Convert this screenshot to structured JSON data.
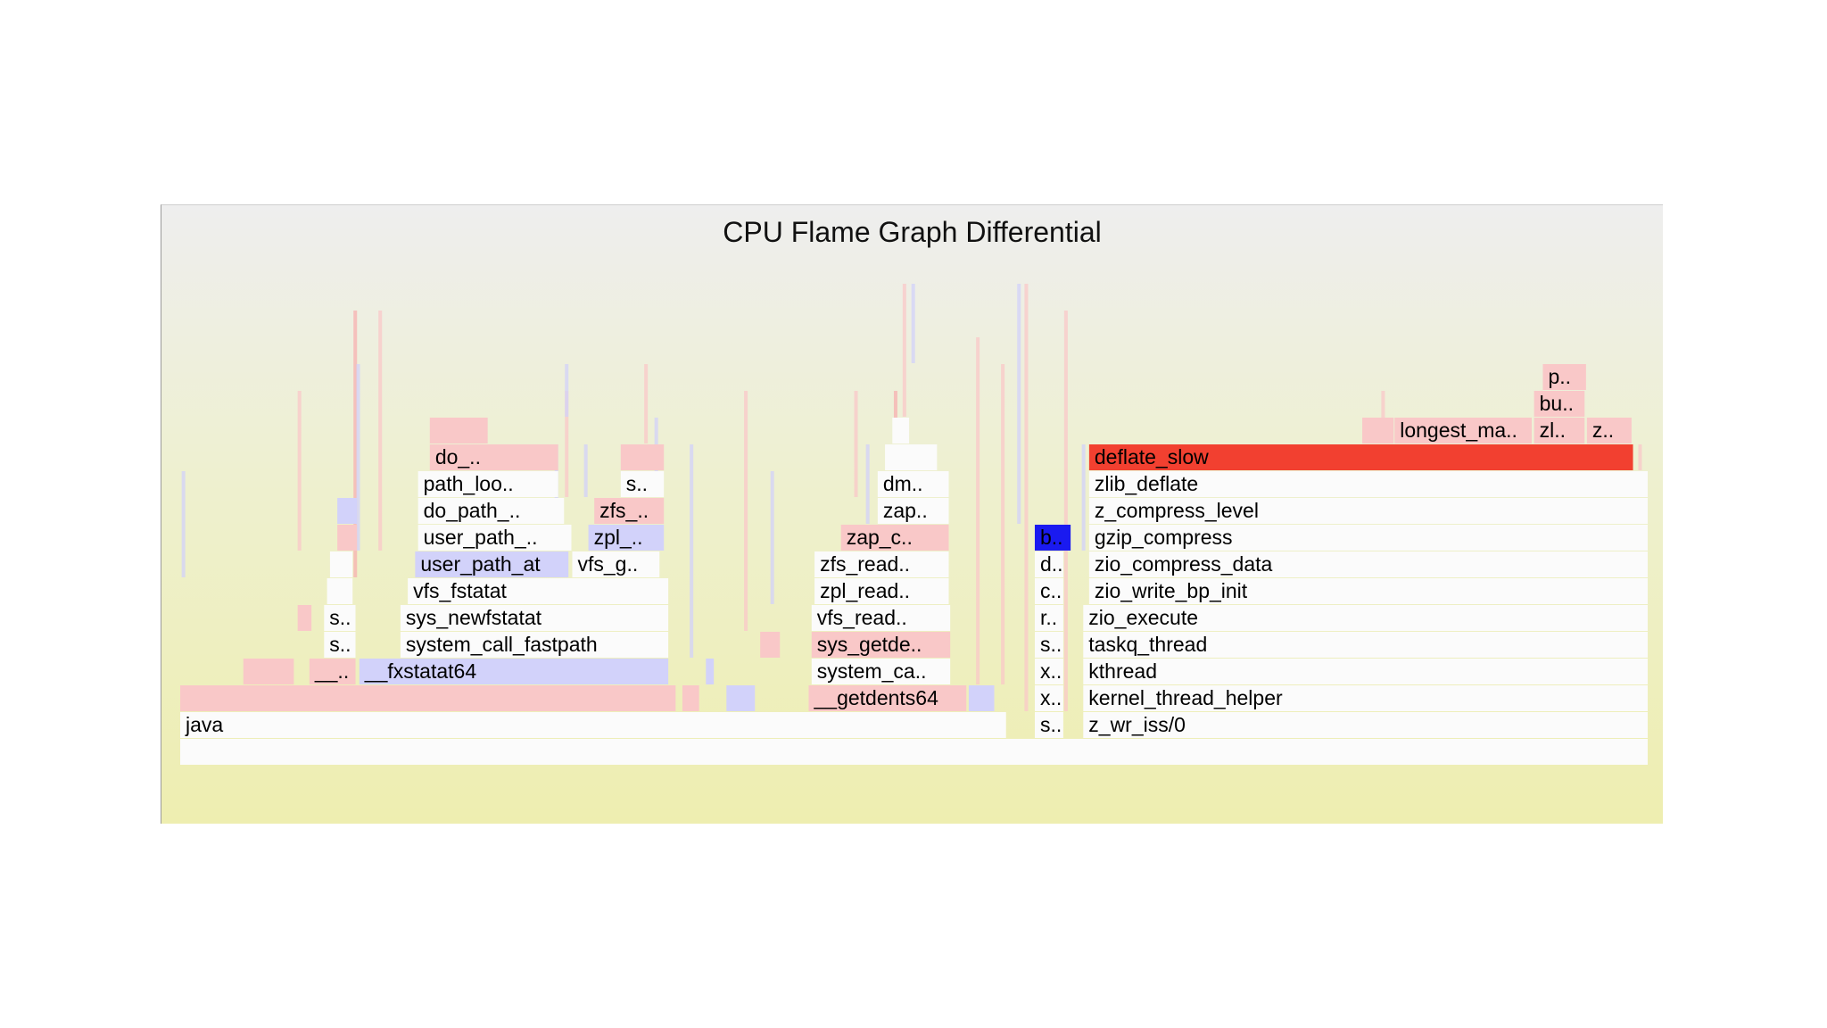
{
  "chart_data": {
    "type": "flame-graph-differential",
    "title": "CPU Flame Graph Differential",
    "colors": {
      "empty": "#fbfbfb",
      "pink": "#f9c8c8",
      "pink_mid": "#f7b0b0",
      "lavender": "#d2d2fa",
      "hot_red": "#f24030",
      "deep_blue": "#1a1af0"
    },
    "frames": [
      {
        "label": "",
        "start": 0.0,
        "width": 1.0,
        "depth": 0,
        "color": "empty"
      },
      {
        "label": "java",
        "start": 0.0,
        "width": 0.563,
        "depth": 1,
        "color": "empty"
      },
      {
        "label": "s..",
        "start": 0.582,
        "width": 0.02,
        "depth": 1,
        "color": "empty"
      },
      {
        "label": "z_wr_iss/0",
        "start": 0.615,
        "width": 0.385,
        "depth": 1,
        "color": "empty"
      },
      {
        "label": "",
        "start": 0.0,
        "width": 0.338,
        "depth": 2,
        "color": "pink"
      },
      {
        "label": "",
        "start": 0.342,
        "width": 0.012,
        "depth": 2,
        "color": "pink"
      },
      {
        "label": "",
        "start": 0.372,
        "width": 0.02,
        "depth": 2,
        "color": "lavender"
      },
      {
        "label": "__getdents64",
        "start": 0.428,
        "width": 0.108,
        "depth": 2,
        "color": "pink"
      },
      {
        "label": "",
        "start": 0.537,
        "width": 0.018,
        "depth": 2,
        "color": "lavender"
      },
      {
        "label": "x..",
        "start": 0.582,
        "width": 0.02,
        "depth": 2,
        "color": "empty"
      },
      {
        "label": "kernel_thread_helper",
        "start": 0.615,
        "width": 0.385,
        "depth": 2,
        "color": "empty"
      },
      {
        "label": "",
        "start": 0.043,
        "width": 0.035,
        "depth": 3,
        "color": "pink"
      },
      {
        "label": "__..",
        "start": 0.088,
        "width": 0.032,
        "depth": 3,
        "color": "pink"
      },
      {
        "label": "__fxstatat64",
        "start": 0.122,
        "width": 0.211,
        "depth": 3,
        "color": "lavender"
      },
      {
        "label": "",
        "start": 0.358,
        "width": 0.006,
        "depth": 3,
        "color": "lavender"
      },
      {
        "label": "system_ca..",
        "start": 0.43,
        "width": 0.095,
        "depth": 3,
        "color": "empty"
      },
      {
        "label": "x..",
        "start": 0.582,
        "width": 0.02,
        "depth": 3,
        "color": "empty"
      },
      {
        "label": "kthread",
        "start": 0.615,
        "width": 0.385,
        "depth": 3,
        "color": "empty"
      },
      {
        "label": "s..",
        "start": 0.098,
        "width": 0.022,
        "depth": 4,
        "color": "empty"
      },
      {
        "label": "system_call_fastpath",
        "start": 0.15,
        "width": 0.183,
        "depth": 4,
        "color": "empty"
      },
      {
        "label": "",
        "start": 0.395,
        "width": 0.014,
        "depth": 4,
        "color": "pink"
      },
      {
        "label": "sys_getde..",
        "start": 0.43,
        "width": 0.095,
        "depth": 4,
        "color": "pink"
      },
      {
        "label": "s..",
        "start": 0.582,
        "width": 0.02,
        "depth": 4,
        "color": "empty"
      },
      {
        "label": "taskq_thread",
        "start": 0.615,
        "width": 0.385,
        "depth": 4,
        "color": "empty"
      },
      {
        "label": "",
        "start": 0.08,
        "width": 0.01,
        "depth": 5,
        "color": "pink"
      },
      {
        "label": "s..",
        "start": 0.098,
        "width": 0.022,
        "depth": 5,
        "color": "empty"
      },
      {
        "label": "sys_newfstatat",
        "start": 0.15,
        "width": 0.183,
        "depth": 5,
        "color": "empty"
      },
      {
        "label": "vfs_read..",
        "start": 0.43,
        "width": 0.095,
        "depth": 5,
        "color": "empty"
      },
      {
        "label": "r..",
        "start": 0.582,
        "width": 0.02,
        "depth": 5,
        "color": "empty"
      },
      {
        "label": "zio_execute",
        "start": 0.615,
        "width": 0.385,
        "depth": 5,
        "color": "empty"
      },
      {
        "label": "",
        "start": 0.1,
        "width": 0.018,
        "depth": 6,
        "color": "empty"
      },
      {
        "label": "vfs_fstatat",
        "start": 0.155,
        "width": 0.178,
        "depth": 6,
        "color": "empty"
      },
      {
        "label": "zpl_read..",
        "start": 0.432,
        "width": 0.092,
        "depth": 6,
        "color": "empty"
      },
      {
        "label": "c..",
        "start": 0.582,
        "width": 0.02,
        "depth": 6,
        "color": "empty"
      },
      {
        "label": "zio_write_bp_init",
        "start": 0.619,
        "width": 0.381,
        "depth": 6,
        "color": "empty"
      },
      {
        "label": "",
        "start": 0.102,
        "width": 0.016,
        "depth": 7,
        "color": "empty"
      },
      {
        "label": "user_path_at",
        "start": 0.16,
        "width": 0.105,
        "depth": 7,
        "color": "lavender"
      },
      {
        "label": "vfs_g..",
        "start": 0.267,
        "width": 0.06,
        "depth": 7,
        "color": "empty"
      },
      {
        "label": "zfs_read..",
        "start": 0.432,
        "width": 0.092,
        "depth": 7,
        "color": "empty"
      },
      {
        "label": "d..",
        "start": 0.582,
        "width": 0.02,
        "depth": 7,
        "color": "empty"
      },
      {
        "label": "zio_compress_data",
        "start": 0.619,
        "width": 0.381,
        "depth": 7,
        "color": "empty"
      },
      {
        "label": "",
        "start": 0.107,
        "width": 0.014,
        "depth": 8,
        "color": "pink"
      },
      {
        "label": "user_path_..",
        "start": 0.162,
        "width": 0.105,
        "depth": 8,
        "color": "empty"
      },
      {
        "label": "zpl_..",
        "start": 0.278,
        "width": 0.052,
        "depth": 8,
        "color": "lavender"
      },
      {
        "label": "zap_c..",
        "start": 0.45,
        "width": 0.074,
        "depth": 8,
        "color": "pink"
      },
      {
        "label": "b..",
        "start": 0.582,
        "width": 0.025,
        "depth": 8,
        "color": "deep_blue"
      },
      {
        "label": "gzip_compress",
        "start": 0.619,
        "width": 0.381,
        "depth": 8,
        "color": "empty"
      },
      {
        "label": "",
        "start": 0.107,
        "width": 0.014,
        "depth": 9,
        "color": "lavender"
      },
      {
        "label": "do_path_..",
        "start": 0.162,
        "width": 0.1,
        "depth": 9,
        "color": "empty"
      },
      {
        "label": "zfs_..",
        "start": 0.282,
        "width": 0.048,
        "depth": 9,
        "color": "pink"
      },
      {
        "label": "zap..",
        "start": 0.475,
        "width": 0.049,
        "depth": 9,
        "color": "empty"
      },
      {
        "label": "z_compress_level",
        "start": 0.619,
        "width": 0.381,
        "depth": 9,
        "color": "empty"
      },
      {
        "label": "path_loo..",
        "start": 0.162,
        "width": 0.096,
        "depth": 10,
        "color": "empty"
      },
      {
        "label": "s..",
        "start": 0.3,
        "width": 0.03,
        "depth": 10,
        "color": "empty"
      },
      {
        "label": "dm..",
        "start": 0.475,
        "width": 0.049,
        "depth": 10,
        "color": "empty"
      },
      {
        "label": "zlib_deflate",
        "start": 0.619,
        "width": 0.381,
        "depth": 10,
        "color": "empty"
      },
      {
        "label": "do_..",
        "start": 0.17,
        "width": 0.088,
        "depth": 11,
        "color": "pink"
      },
      {
        "label": "",
        "start": 0.3,
        "width": 0.03,
        "depth": 11,
        "color": "pink"
      },
      {
        "label": "",
        "start": 0.48,
        "width": 0.036,
        "depth": 11,
        "color": "empty"
      },
      {
        "label": "deflate_slow",
        "start": 0.619,
        "width": 0.371,
        "depth": 11,
        "color": "hot_red"
      },
      {
        "label": "",
        "start": 0.17,
        "width": 0.04,
        "depth": 12,
        "color": "pink"
      },
      {
        "label": "",
        "start": 0.485,
        "width": 0.012,
        "depth": 12,
        "color": "empty"
      },
      {
        "label": "",
        "start": 0.805,
        "width": 0.022,
        "depth": 12,
        "color": "pink"
      },
      {
        "label": "longest_ma..",
        "start": 0.827,
        "width": 0.094,
        "depth": 12,
        "color": "pink"
      },
      {
        "label": "zl..",
        "start": 0.922,
        "width": 0.035,
        "depth": 12,
        "color": "pink"
      },
      {
        "label": "z..",
        "start": 0.958,
        "width": 0.031,
        "depth": 12,
        "color": "pink"
      },
      {
        "label": "bu..",
        "start": 0.922,
        "width": 0.035,
        "depth": 13,
        "color": "pink"
      },
      {
        "label": "p..",
        "start": 0.928,
        "width": 0.03,
        "depth": 14,
        "color": "pink"
      }
    ],
    "slivers": [
      {
        "x": 0.001,
        "depth": 7,
        "height": 4,
        "color": "lavender"
      },
      {
        "x": 0.08,
        "depth": 8,
        "height": 6,
        "color": "pink"
      },
      {
        "x": 0.118,
        "depth": 7,
        "height": 10,
        "color": "pink_mid"
      },
      {
        "x": 0.12,
        "depth": 8,
        "height": 7,
        "color": "lavender"
      },
      {
        "x": 0.135,
        "depth": 8,
        "height": 9,
        "color": "pink"
      },
      {
        "x": 0.255,
        "depth": 9,
        "height": 3,
        "color": "lavender"
      },
      {
        "x": 0.262,
        "depth": 10,
        "height": 4,
        "color": "pink"
      },
      {
        "x": 0.262,
        "depth": 13,
        "height": 2,
        "color": "lavender"
      },
      {
        "x": 0.275,
        "depth": 10,
        "height": 2,
        "color": "lavender"
      },
      {
        "x": 0.316,
        "depth": 12,
        "height": 3,
        "color": "pink"
      },
      {
        "x": 0.323,
        "depth": 10,
        "height": 3,
        "color": "lavender"
      },
      {
        "x": 0.347,
        "depth": 4,
        "height": 8,
        "color": "lavender"
      },
      {
        "x": 0.384,
        "depth": 5,
        "height": 9,
        "color": "pink"
      },
      {
        "x": 0.402,
        "depth": 6,
        "height": 5,
        "color": "lavender"
      },
      {
        "x": 0.459,
        "depth": 10,
        "height": 4,
        "color": "pink"
      },
      {
        "x": 0.467,
        "depth": 9,
        "height": 3,
        "color": "lavender"
      },
      {
        "x": 0.486,
        "depth": 12,
        "height": 2,
        "color": "pink_mid"
      },
      {
        "x": 0.492,
        "depth": 13,
        "height": 5,
        "color": "pink"
      },
      {
        "x": 0.498,
        "depth": 15,
        "height": 3,
        "color": "lavender"
      },
      {
        "x": 0.542,
        "depth": 3,
        "height": 13,
        "color": "pink"
      },
      {
        "x": 0.559,
        "depth": 3,
        "height": 12,
        "color": "pink"
      },
      {
        "x": 0.57,
        "depth": 9,
        "height": 9,
        "color": "lavender"
      },
      {
        "x": 0.575,
        "depth": 2,
        "height": 16,
        "color": "pink"
      },
      {
        "x": 0.602,
        "depth": 2,
        "height": 15,
        "color": "pink"
      },
      {
        "x": 0.614,
        "depth": 8,
        "height": 4,
        "color": "lavender"
      },
      {
        "x": 0.818,
        "depth": 12,
        "height": 2,
        "color": "pink"
      },
      {
        "x": 0.993,
        "depth": 11,
        "height": 1,
        "color": "pink"
      }
    ]
  }
}
